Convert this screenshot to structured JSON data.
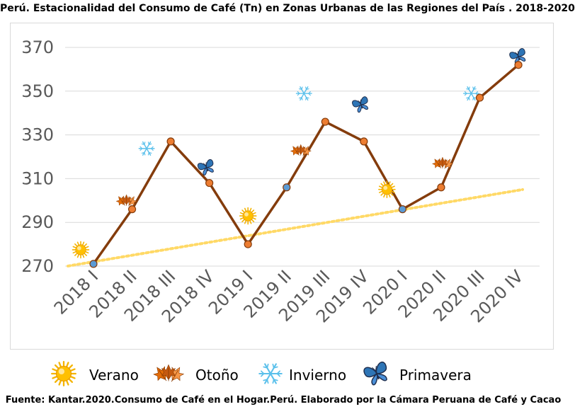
{
  "chart_data": {
    "type": "line",
    "title": "Perú. Estacionalidad del Consumo de Café (Tn) en  Zonas Urbanas de las Regiones del País . 2018-2020",
    "categories": [
      "2018 I",
      "2018 II",
      "2018 III",
      "2018 IV",
      "2019 I",
      "2019 II",
      "2019 III",
      "2019 IV",
      "2020 I",
      "2020 II",
      "2020 III",
      "2020 IV"
    ],
    "series": [
      {
        "values": [
          271,
          296,
          327,
          308,
          280,
          306,
          336,
          327,
          296,
          306,
          347,
          362
        ],
        "seasons": [
          "verano",
          "otono",
          "invierno",
          "primavera",
          "verano",
          "otono",
          "invierno",
          "primavera",
          "verano",
          "otono",
          "invierno",
          "primavera"
        ],
        "color": "#843c0c"
      }
    ],
    "trendline": {
      "type": "linear",
      "from": 271,
      "to": 305,
      "color": "#ffd966"
    },
    "yticks": [
      270,
      290,
      310,
      330,
      350,
      370
    ],
    "ylim": [
      265,
      375
    ],
    "xlabel": "",
    "ylabel": "",
    "grid": true,
    "legend_position": "bottom"
  },
  "legend": [
    {
      "key": "verano",
      "label": "Verano",
      "icon": "sun-icon"
    },
    {
      "key": "otono",
      "label": "Otoño",
      "icon": "autumn-leaves-icon"
    },
    {
      "key": "invierno",
      "label": "Invierno",
      "icon": "snowflake-icon"
    },
    {
      "key": "primavera",
      "label": "Primavera",
      "icon": "butterfly-icon"
    }
  ],
  "footer": "Fuente: Kantar.2020.Consumo de Café en el Hogar.Perú.  Elaborado por la Cámara Peruana de Café y Cacao",
  "colors": {
    "line": "#843c0c",
    "marker": "#ed7d31",
    "marker_highlight": "#5b9bd5",
    "trend": "#ffd966",
    "grid": "#d9d9d9",
    "tick_text": "#595959"
  }
}
